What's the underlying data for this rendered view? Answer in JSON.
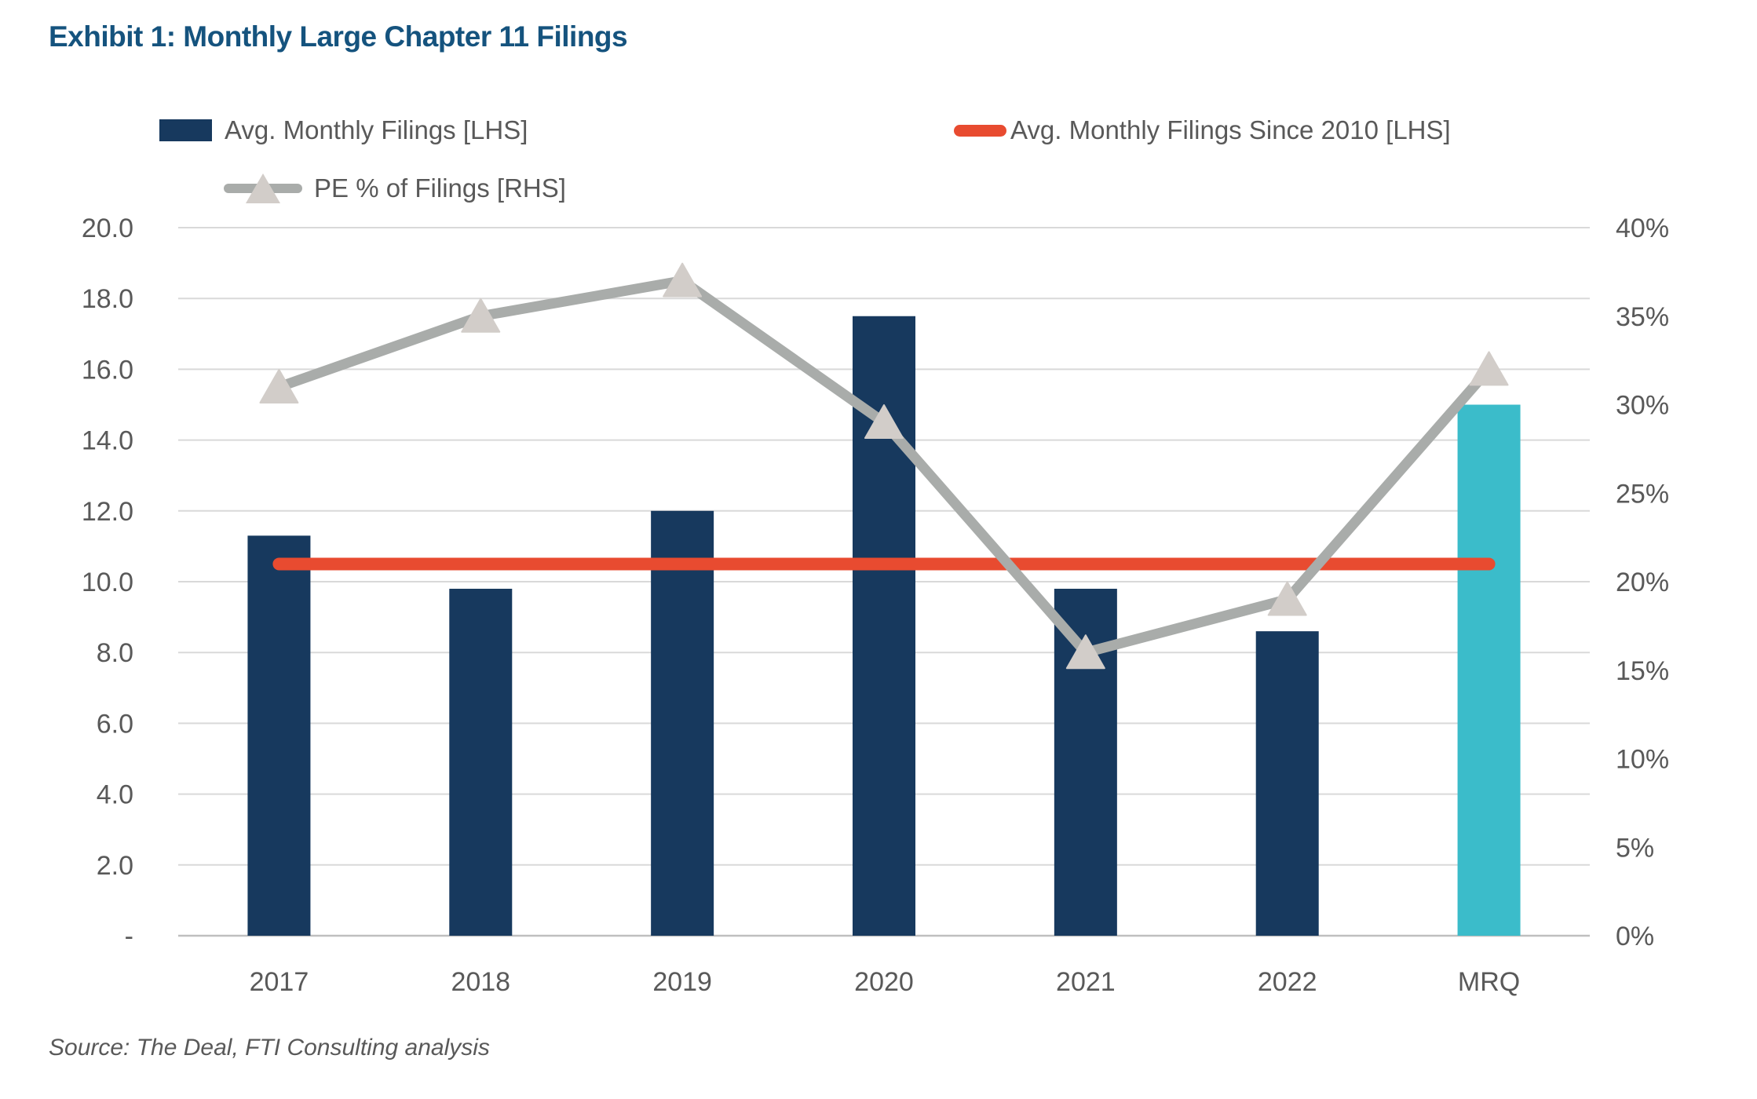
{
  "title": "Exhibit 1: Monthly Large Chapter 11 Filings",
  "source": "Source: The Deal, FTI Consulting analysis",
  "legend": {
    "bar_label": "Avg. Monthly Filings [LHS]",
    "redline_label": "Avg. Monthly Filings Since 2010 [LHS]",
    "peline_label": "PE % of Filings [RHS]"
  },
  "colors": {
    "title": "#15537e",
    "bar": "#17395e",
    "bar_highlight": "#3bbcca",
    "avg_line": "#e84b30",
    "pe_line": "#a9acaa",
    "pe_marker": "#d2cdc9",
    "grid": "#d9d9d9",
    "axis_line": "#bfbfbf",
    "label_text": "#595959"
  },
  "chart_data": {
    "type": "bar",
    "categories": [
      "2017",
      "2018",
      "2019",
      "2020",
      "2021",
      "2022",
      "MRQ"
    ],
    "series": [
      {
        "name": "Avg. Monthly Filings [LHS]",
        "type": "bar",
        "axis": "left",
        "values": [
          11.3,
          9.8,
          12.0,
          17.5,
          9.8,
          8.6,
          15.0
        ],
        "highlight_last_bar": true
      },
      {
        "name": "Avg. Monthly Filings Since 2010 [LHS]",
        "type": "line",
        "axis": "left",
        "constant_value": 10.5
      },
      {
        "name": "PE % of Filings [RHS]",
        "type": "line",
        "axis": "right",
        "marker": "triangle",
        "values": [
          31,
          35,
          37,
          29,
          16,
          19,
          32
        ]
      }
    ],
    "left_axis": {
      "min": 0,
      "max": 20,
      "step": 2,
      "tick_labels": [
        "20.0",
        "18.0",
        "16.0",
        "14.0",
        "12.0",
        "10.0",
        "8.0",
        "6.0",
        "4.0",
        "2.0",
        "-"
      ]
    },
    "right_axis": {
      "min": 0,
      "max": 40,
      "step": 5,
      "tick_labels": [
        "40%",
        "35%",
        "30%",
        "25%",
        "20%",
        "15%",
        "10%",
        "5%",
        "0%"
      ]
    },
    "grid": true,
    "legend_position": "top"
  }
}
